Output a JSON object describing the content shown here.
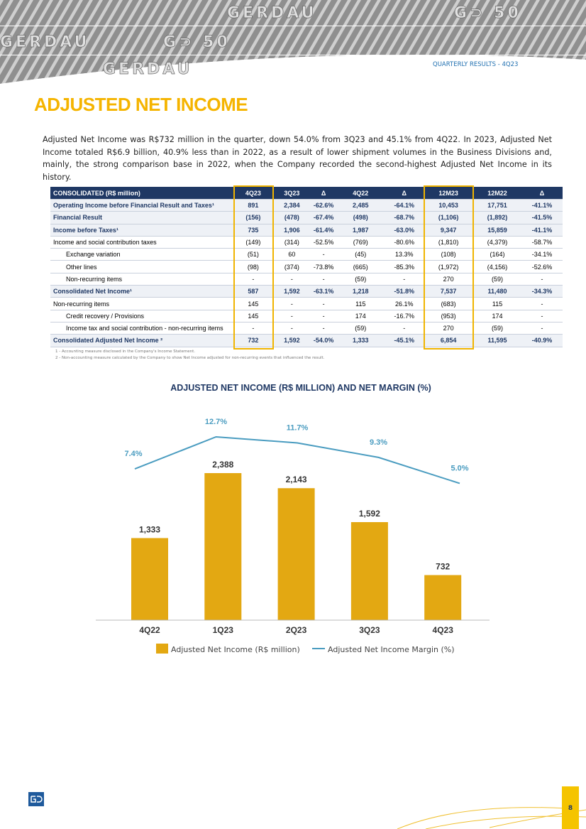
{
  "header": {
    "banner_texts": [
      "GERDAU",
      "G⊃ 50",
      "GERDAU",
      "G⊃ 50",
      "GERDAU"
    ],
    "label": "QUARTERLY RESULTS - 4Q23"
  },
  "title": "ADJUSTED NET INCOME",
  "paragraph": "Adjusted Net Income was R$732 million in the quarter, down 54.0% from 3Q23 and 45.1% from 4Q22. In 2023, Adjusted Net Income totaled R$6.9 billion, 40.9% less than in 2022, as a result of lower shipment volumes in the Business Divisions and, mainly, the strong comparison base in 2022, when the Company recorded the second-highest Adjusted Net Income in its history.",
  "table": {
    "header": [
      "CONSOLIDATED (R$ million)",
      "4Q23",
      "3Q23",
      "Δ",
      "4Q22",
      "Δ",
      "12M23",
      "12M22",
      "Δ"
    ],
    "rows": [
      [
        "Operating Income before Financial Result and Taxes¹",
        "891",
        "2,384",
        "-62.6%",
        "2,485",
        "-64.1%",
        "10,453",
        "17,751",
        "-41.1%"
      ],
      [
        "Financial Result",
        "(156)",
        "(478)",
        "-67.4%",
        "(498)",
        "-68.7%",
        "(1,106)",
        "(1,892)",
        "-41.5%"
      ],
      [
        "Income before Taxes¹",
        "735",
        "1,906",
        "-61.4%",
        "1,987",
        "-63.0%",
        "9,347",
        "15,859",
        "-41.1%"
      ],
      [
        "Income and social contribution taxes",
        "(149)",
        "(314)",
        "-52.5%",
        "(769)",
        "-80.6%",
        "(1,810)",
        "(4,379)",
        "-58.7%"
      ],
      [
        "Exchange variation",
        "(51)",
        "60",
        "-",
        "(45)",
        "13.3%",
        "(108)",
        "(164)",
        "-34.1%"
      ],
      [
        "Other lines",
        "(98)",
        "(374)",
        "-73.8%",
        "(665)",
        "-85.3%",
        "(1,972)",
        "(4,156)",
        "-52.6%"
      ],
      [
        "Non-recurring items",
        "-",
        "-",
        "-",
        "(59)",
        "-",
        "270",
        "(59)",
        "-"
      ],
      [
        "Consolidated Net Income¹",
        "587",
        "1,592",
        "-63.1%",
        "1,218",
        "-51.8%",
        "7,537",
        "11,480",
        "-34.3%"
      ],
      [
        "Non-recurring items",
        "145",
        "-",
        "-",
        "115",
        "26.1%",
        "(683)",
        "115",
        "-"
      ],
      [
        "Credit recovery / Provisions",
        "145",
        "-",
        "-",
        "174",
        "-16.7%",
        "(953)",
        "174",
        "-"
      ],
      [
        "Income tax and social contribution - non-recurring items",
        "-",
        "-",
        "-",
        "(59)",
        "-",
        "270",
        "(59)",
        "-"
      ],
      [
        "Consolidated Adjusted Net Income ²",
        "732",
        "1,592",
        "-54.0%",
        "1,333",
        "-45.1%",
        "6,854",
        "11,595",
        "-40.9%"
      ]
    ],
    "footnotes": [
      "1 - Accounting measure disclosed in the Company's Income Statement.",
      "2 - Non-accounting measure calculated by the Company to show Net Income adjusted for non-recurring events that influenced the result."
    ]
  },
  "chart_data": {
    "type": "bar",
    "title": "ADJUSTED NET INCOME (R$ MILLION) AND NET MARGIN (%)",
    "categories": [
      "4Q22",
      "1Q23",
      "2Q23",
      "3Q23",
      "4Q23"
    ],
    "series": [
      {
        "name": "Adjusted Net Income (R$ million)",
        "type": "bar",
        "color": "#e3a812",
        "values": [
          1333,
          2388,
          2143,
          1592,
          732
        ],
        "value_labels": [
          "1,333",
          "2,388",
          "2,143",
          "1,592",
          "732"
        ]
      },
      {
        "name": "Adjusted Net Income Margin (%)",
        "type": "line",
        "color": "#4a9cc0",
        "values": [
          7.4,
          12.7,
          11.7,
          9.3,
          5.0
        ],
        "value_labels": [
          "7.4%",
          "12.7%",
          "11.7%",
          "9.3%",
          "5.0%"
        ]
      }
    ]
  },
  "footer": {
    "page": "8"
  }
}
